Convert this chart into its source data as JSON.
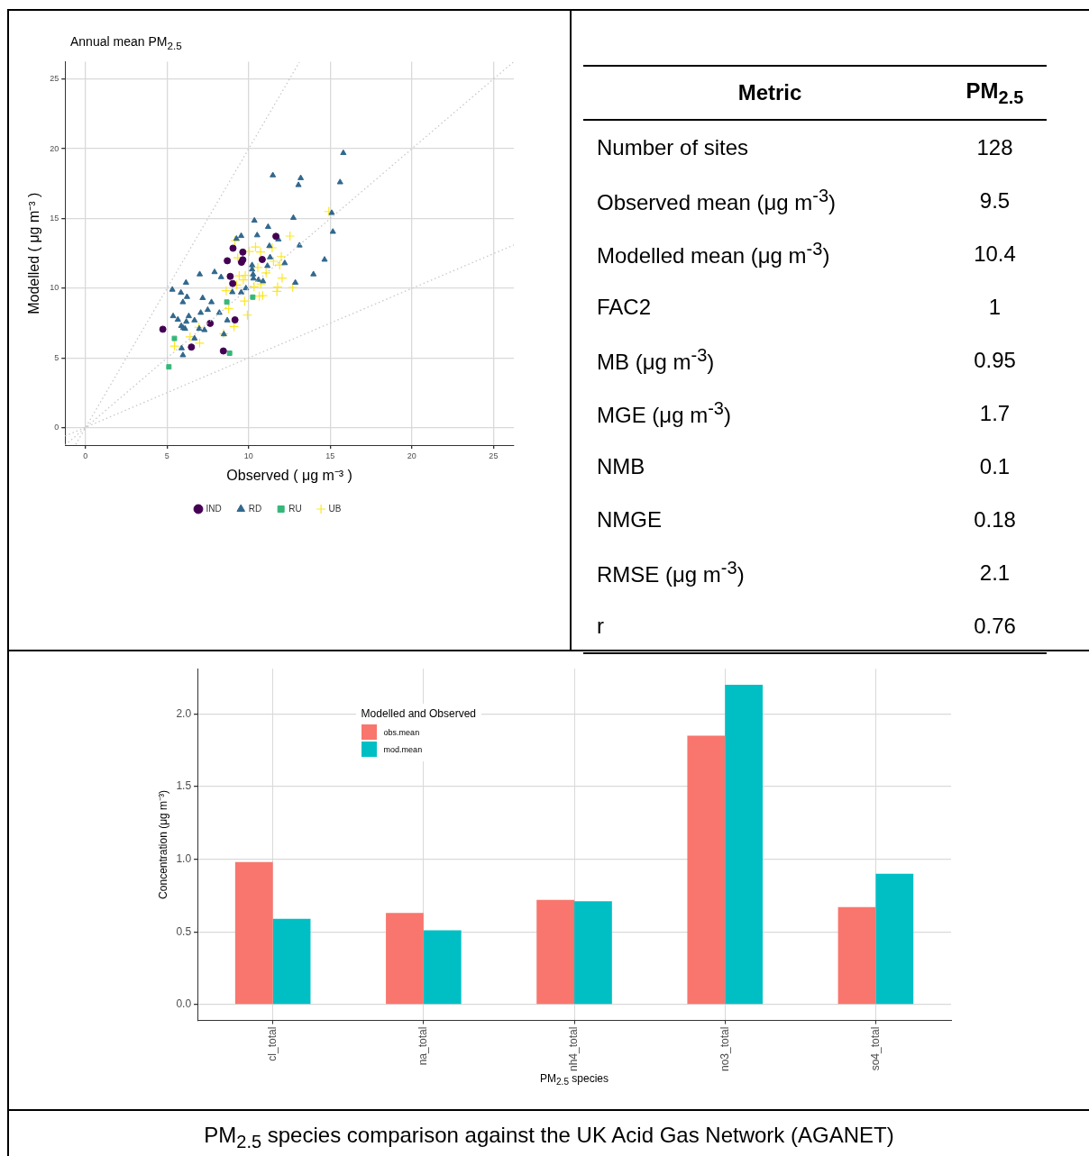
{
  "chart_data": [
    {
      "type": "scatter",
      "title": "Annual mean PM$_{2.5}$",
      "xlabel": "Observed ( μg m⁻³ )",
      "ylabel": "Modelled ( μg m⁻³ )",
      "xlim": [
        -1.25,
        26.25
      ],
      "ylim": [
        -1.25,
        26.25
      ],
      "xticks": [
        0,
        5,
        10,
        15,
        20,
        25
      ],
      "yticks": [
        0,
        5,
        10,
        15,
        20,
        25
      ],
      "grid": true,
      "legend": "bottom",
      "series": [
        {
          "type": "line",
          "color": "#c8c8c8",
          "line_style": "dotted",
          "marker": "none",
          "x": [
            -1.25,
            26.25
          ],
          "values": [
            -1.25,
            26.25
          ]
        },
        {
          "type": "line",
          "color": "#c8c8c8",
          "line_style": "dotted",
          "marker": "none",
          "x": [
            -0.6,
            13.1
          ],
          "values": [
            -1.2,
            26.2
          ]
        },
        {
          "type": "line",
          "color": "#c8c8c8",
          "line_style": "dotted",
          "marker": "none",
          "x": [
            -1.25,
            26.25
          ],
          "values": [
            -0.6,
            13.1
          ]
        },
        {
          "name": "IND",
          "color": "#440154",
          "marker": "circle",
          "x": [
            4.74,
            6.49,
            7.64,
            8.45,
            8.69,
            8.87,
            9.02,
            9.04,
            9.16,
            9.64,
            9.56,
            9.64,
            10.83,
            11.67
          ],
          "values": [
            7.06,
            5.78,
            7.48,
            5.5,
            11.97,
            10.85,
            10.34,
            12.87,
            7.73,
            12.59,
            11.86,
            12.04,
            12.06,
            13.72
          ]
        },
        {
          "name": "RD",
          "color": "#31688e",
          "marker": "triangle",
          "x": [
            15.8,
            11.48,
            13.19,
            13.05,
            15.6,
            15.09,
            12.74,
            10.35,
            11.19,
            15.16,
            9.54,
            9.25,
            10.52,
            11.82,
            11.27,
            13.11,
            11.31,
            12.21,
            11.15,
            10.21,
            10.21,
            10.27,
            14.65,
            13.97,
            12.86,
            10.88,
            10.6,
            10.29,
            9.83,
            9.54,
            9.0,
            7.91,
            8.31,
            7.0,
            6.16,
            5.32,
            5.85,
            6.22,
            5.97,
            7.18,
            7.72,
            7.49,
            7.06,
            8.2,
            5.37,
            5.66,
            6.33,
            6.18,
            6.68,
            5.87,
            5.99,
            6.1,
            6.97,
            7.29,
            8.69,
            6.68,
            8.48,
            5.89,
            5.97
          ],
          "values": [
            19.7,
            18.1,
            17.9,
            17.4,
            17.6,
            15.4,
            15.05,
            14.85,
            14.4,
            14.05,
            13.75,
            13.55,
            13.8,
            13.5,
            13.03,
            13.07,
            12.22,
            11.8,
            11.6,
            11.65,
            11.35,
            10.99,
            12.05,
            11.0,
            10.4,
            10.5,
            10.6,
            10.7,
            10.0,
            9.7,
            9.72,
            11.16,
            10.8,
            11.0,
            10.4,
            9.9,
            9.68,
            9.38,
            9.0,
            9.3,
            9.0,
            8.45,
            8.24,
            8.24,
            8.0,
            7.75,
            8.0,
            7.6,
            7.7,
            7.3,
            7.15,
            7.1,
            7.1,
            7.0,
            7.7,
            6.4,
            6.7,
            5.7,
            5.2
          ]
        },
        {
          "name": "RU",
          "color": "#35b779",
          "marker": "square",
          "x": [
            5.11,
            5.45,
            8.66,
            8.83,
            10.25
          ],
          "values": [
            4.36,
            6.4,
            9.01,
            5.34,
            9.36
          ]
        },
        {
          "name": "UB",
          "color": "#fde725",
          "marker": "cross",
          "x": [
            14.91,
            12.53,
            9.16,
            10.42,
            11.44,
            10.73,
            10.04,
            9.33,
            12.0,
            11.52,
            11.9,
            10.56,
            11.07,
            9.42,
            9.79,
            9.67,
            12.05,
            10.75,
            10.33,
            9.27,
            8.62,
            11.77,
            12.7,
            11.73,
            10.86,
            10.65,
            9.75,
            8.77,
            9.92,
            9.1,
            6.95,
            8.46,
            6.41,
            6.99,
            5.45
          ],
          "values": [
            15.5,
            13.74,
            13.4,
            12.96,
            12.9,
            12.6,
            12.64,
            12.18,
            12.27,
            11.93,
            11.67,
            11.49,
            11.1,
            10.89,
            10.92,
            10.6,
            10.73,
            10.3,
            10.1,
            10.23,
            9.82,
            10.09,
            10.05,
            9.77,
            9.47,
            9.43,
            9.08,
            8.53,
            8.07,
            7.25,
            7.2,
            6.74,
            6.51,
            6.06,
            5.85
          ]
        }
      ]
    },
    {
      "type": "other",
      "annotations": [
        "Metric",
        "PM$_{2.5}$"
      ],
      "categories": [
        "Number of sites",
        "Observed mean (μg m$^{-3}$)",
        "Modelled mean (μg m$^{-3}$)",
        "FAC2",
        "MB (μg m$^{-3}$)",
        "MGE (μg m$^{-3}$)",
        "NMB",
        "NMGE",
        "RMSE (μg m$^{-3}$)",
        "r"
      ],
      "values": [
        128,
        9.5,
        10.4,
        1,
        0.95,
        1.7,
        0.1,
        0.18,
        2.1,
        0.76
      ],
      "data_labels": true
    },
    {
      "type": "bar",
      "xlabel": "PM$_{2.5}$ species",
      "ylabel": "Concentration (μg m⁻³)",
      "legend_title": "Modelled and Observed",
      "legend": "top left",
      "grid": true,
      "categories": [
        "cl_total",
        "na_total",
        "nh4_total",
        "no3_total",
        "so4_total"
      ],
      "ylim": [
        -0.11,
        2.31
      ],
      "yticks": [
        {
          "value": 0,
          "label": "0.0"
        },
        0.5,
        {
          "value": 1,
          "label": "1.0"
        },
        1.5,
        {
          "value": 2,
          "label": "2.0"
        }
      ],
      "series": [
        {
          "name": "obs.mean",
          "color": "#f8766d",
          "values": [
            0.98,
            0.63,
            0.72,
            1.85,
            0.67
          ]
        },
        {
          "name": "mod.mean",
          "color": "#00bfc4",
          "values": [
            0.59,
            0.51,
            0.71,
            2.2,
            0.9
          ]
        }
      ],
      "annotations": [
        "PM$_{2.5}$ species comparison against the UK Acid Gas Network (AGANET)"
      ]
    }
  ]
}
